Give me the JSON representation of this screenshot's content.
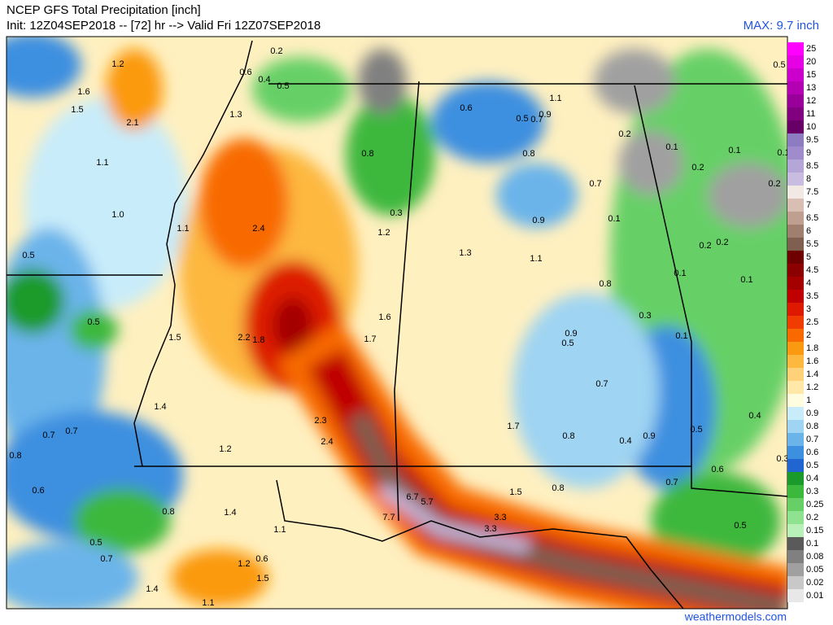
{
  "header": {
    "title": "NCEP GFS Total Precipitation [inch]",
    "subtitle": "Init: 12Z04SEP2018 -- [72] hr --> Valid Fri 12Z07SEP2018",
    "max": "MAX: 9.7 inch"
  },
  "legend": {
    "levels": [
      {
        "label": "25",
        "color": "#ff00ff"
      },
      {
        "label": "20",
        "color": "#e600e6"
      },
      {
        "label": "15",
        "color": "#cc00cc"
      },
      {
        "label": "13",
        "color": "#b300b3"
      },
      {
        "label": "12",
        "color": "#990099"
      },
      {
        "label": "11",
        "color": "#800080"
      },
      {
        "label": "10",
        "color": "#660066"
      },
      {
        "label": "9.5",
        "color": "#8e7cc3"
      },
      {
        "label": "9",
        "color": "#a08ccc"
      },
      {
        "label": "8.5",
        "color": "#b4a6d6"
      },
      {
        "label": "8",
        "color": "#c8bce0"
      },
      {
        "label": "7.5",
        "color": "#f2e8e4"
      },
      {
        "label": "7",
        "color": "#d9bfb3"
      },
      {
        "label": "6.5",
        "color": "#bf9f8f"
      },
      {
        "label": "6",
        "color": "#a07f6f"
      },
      {
        "label": "5.5",
        "color": "#7f5f50"
      },
      {
        "label": "5",
        "color": "#6e0000"
      },
      {
        "label": "4.5",
        "color": "#8b0000"
      },
      {
        "label": "4",
        "color": "#a50000"
      },
      {
        "label": "3.5",
        "color": "#c00000"
      },
      {
        "label": "3",
        "color": "#dd1a00"
      },
      {
        "label": "2.5",
        "color": "#f03c00"
      },
      {
        "label": "2",
        "color": "#f86a00"
      },
      {
        "label": "1.8",
        "color": "#fb9a10"
      },
      {
        "label": "1.6",
        "color": "#fdb840"
      },
      {
        "label": "1.4",
        "color": "#ffd27a"
      },
      {
        "label": "1.2",
        "color": "#ffe8a8"
      },
      {
        "label": "1",
        "color": "#fffde0"
      },
      {
        "label": "0.9",
        "color": "#c8ecfa"
      },
      {
        "label": "0.8",
        "color": "#9fd4f2"
      },
      {
        "label": "0.7",
        "color": "#6ab4ea"
      },
      {
        "label": "0.6",
        "color": "#3d8fe0"
      },
      {
        "label": "0.5",
        "color": "#2166d0"
      },
      {
        "label": "0.4",
        "color": "#1a9a2a"
      },
      {
        "label": "0.3",
        "color": "#3cb83c"
      },
      {
        "label": "0.25",
        "color": "#66d066"
      },
      {
        "label": "0.2",
        "color": "#8fe28f"
      },
      {
        "label": "0.15",
        "color": "#b8f0b8"
      },
      {
        "label": "0.1",
        "color": "#5a5a5a"
      },
      {
        "label": "0.08",
        "color": "#808080"
      },
      {
        "label": "0.05",
        "color": "#a0a0a0"
      },
      {
        "label": "0.02",
        "color": "#c8c8c8"
      },
      {
        "label": "0.01",
        "color": "#e8e8e8"
      }
    ]
  },
  "map": {
    "labels": [
      "1.2",
      "0.2",
      "0.6",
      "0.4",
      "0.5",
      "1.6",
      "1.5",
      "2.1",
      "1.3",
      "0.6",
      "1.1",
      "0.5",
      "0.7",
      "0.9",
      "0.8",
      "0.8",
      "0.2",
      "0.1",
      "0.1",
      "0.1",
      "1.1",
      "0.2",
      "0.7",
      "0.2",
      "1.0",
      "2.4",
      "0.3",
      "0.9",
      "0.1",
      "1.1",
      "1.2",
      "0.2",
      "0.2",
      "0.5",
      "1.3",
      "1.1",
      "0.1",
      "0.1",
      "0.8",
      "0.3",
      "1.6",
      "0.5",
      "1.5",
      "2.2",
      "1.8",
      "1.7",
      "0.9",
      "0.5",
      "0.1",
      "0.7",
      "1.4",
      "2.3",
      "1.7",
      "0.5",
      "0.4",
      "0.7",
      "0.7",
      "2.4",
      "0.8",
      "0.4",
      "0.9",
      "1.2",
      "0.8",
      "0.3",
      "0.6",
      "0.7",
      "0.8",
      "0.6",
      "1.5",
      "6.7",
      "5.7",
      "1.4",
      "0.8",
      "7.7",
      "3.3",
      "1.1",
      "3.3",
      "0.5",
      "0.5",
      "0.7",
      "1.2",
      "0.6",
      "1.5",
      "1.4",
      "1.1",
      "0.5"
    ]
  },
  "footer": {
    "credit": "weathermodels.com"
  }
}
